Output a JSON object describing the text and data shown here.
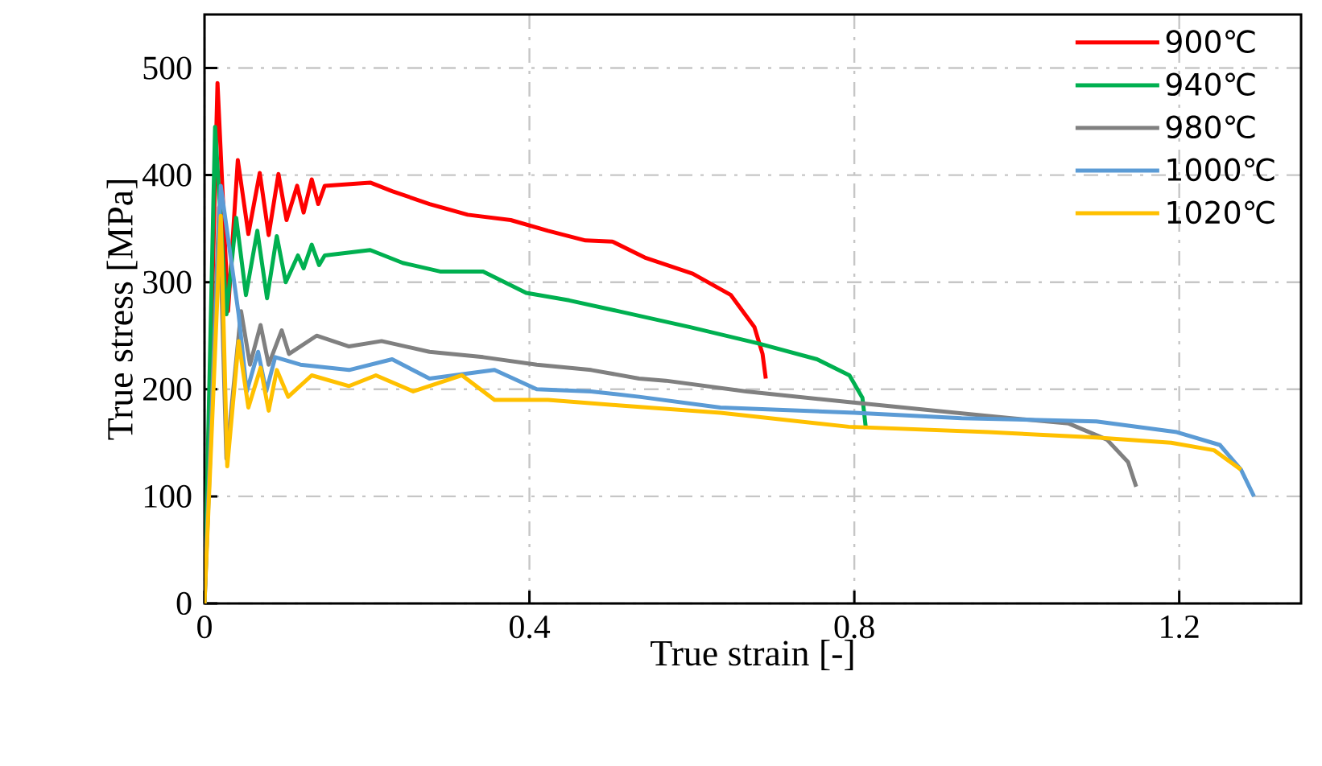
{
  "chart_data": {
    "type": "line",
    "xlabel": "True strain [-]",
    "ylabel": "True stress [MPa]",
    "xlim": [
      0,
      1.35
    ],
    "xticks": [
      0,
      0.4,
      0.8,
      1.2
    ],
    "ylim": [
      0,
      550
    ],
    "yticks": [
      0,
      100,
      200,
      300,
      400,
      500
    ],
    "grid": true,
    "legend": "top right",
    "marker": "none",
    "line_style": "solid",
    "series": [
      {
        "name": "900℃",
        "color": "#ff0000",
        "x": [
          0,
          0.016,
          0.029,
          0.041,
          0.054,
          0.068,
          0.079,
          0.091,
          0.101,
          0.114,
          0.122,
          0.132,
          0.14,
          0.148,
          0.204,
          0.231,
          0.277,
          0.324,
          0.377,
          0.423,
          0.469,
          0.502,
          0.542,
          0.601,
          0.648,
          0.677,
          0.687,
          0.691
        ],
        "values": [
          0,
          486,
          273,
          414,
          345,
          402,
          344,
          401,
          358,
          390,
          365,
          396,
          373,
          390,
          393,
          385,
          373,
          363,
          358,
          348,
          339,
          338,
          323,
          308,
          288,
          258,
          233,
          210
        ]
      },
      {
        "name": "940℃",
        "color": "#00b050",
        "x": [
          0,
          0.013,
          0.027,
          0.039,
          0.051,
          0.065,
          0.077,
          0.089,
          0.1,
          0.115,
          0.122,
          0.132,
          0.141,
          0.148,
          0.204,
          0.244,
          0.29,
          0.343,
          0.396,
          0.449,
          0.509,
          0.598,
          0.681,
          0.754,
          0.794,
          0.81,
          0.814
        ],
        "values": [
          0,
          445,
          270,
          360,
          288,
          348,
          285,
          343,
          300,
          325,
          313,
          335,
          316,
          325,
          330,
          318,
          310,
          310,
          290,
          283,
          273,
          258,
          243,
          228,
          213,
          192,
          165
        ]
      },
      {
        "name": "980℃",
        "color": "#808080",
        "x": [
          0,
          0.018,
          0.027,
          0.045,
          0.056,
          0.069,
          0.079,
          0.095,
          0.104,
          0.138,
          0.178,
          0.218,
          0.277,
          0.343,
          0.409,
          0.476,
          0.535,
          0.568,
          0.667,
          0.794,
          0.965,
          1.064,
          1.111,
          1.137,
          1.147
        ],
        "values": [
          0,
          370,
          135,
          273,
          223,
          260,
          223,
          255,
          233,
          250,
          240,
          245,
          235,
          230,
          223,
          218,
          210,
          208,
          198,
          188,
          175,
          168,
          153,
          132,
          109
        ]
      },
      {
        "name": "1000℃",
        "color": "#5b9bd5",
        "x": [
          0,
          0.02,
          0.03,
          0.042,
          0.052,
          0.066,
          0.076,
          0.087,
          0.118,
          0.178,
          0.231,
          0.277,
          0.357,
          0.409,
          0.476,
          0.535,
          0.635,
          0.8,
          0.932,
          1.098,
          1.197,
          1.25,
          1.276,
          1.292
        ],
        "values": [
          0,
          390,
          null,
          270,
          198,
          235,
          198,
          230,
          223,
          218,
          228,
          210,
          218,
          200,
          198,
          193,
          183,
          178,
          173,
          170,
          160,
          148,
          125,
          100
        ]
      },
      {
        "name": "1020℃",
        "color": "#ffc000",
        "x": [
          0,
          0.02,
          0.028,
          0.042,
          0.054,
          0.069,
          0.079,
          0.089,
          0.103,
          0.132,
          0.178,
          0.211,
          0.257,
          0.317,
          0.357,
          0.423,
          0.509,
          0.635,
          0.793,
          0.965,
          1.098,
          1.19,
          1.243,
          1.276
        ],
        "values": [
          0,
          362,
          128,
          245,
          183,
          220,
          180,
          218,
          193,
          213,
          203,
          213,
          198,
          213,
          190,
          190,
          185,
          178,
          165,
          160,
          155,
          150,
          143,
          125
        ]
      }
    ]
  }
}
